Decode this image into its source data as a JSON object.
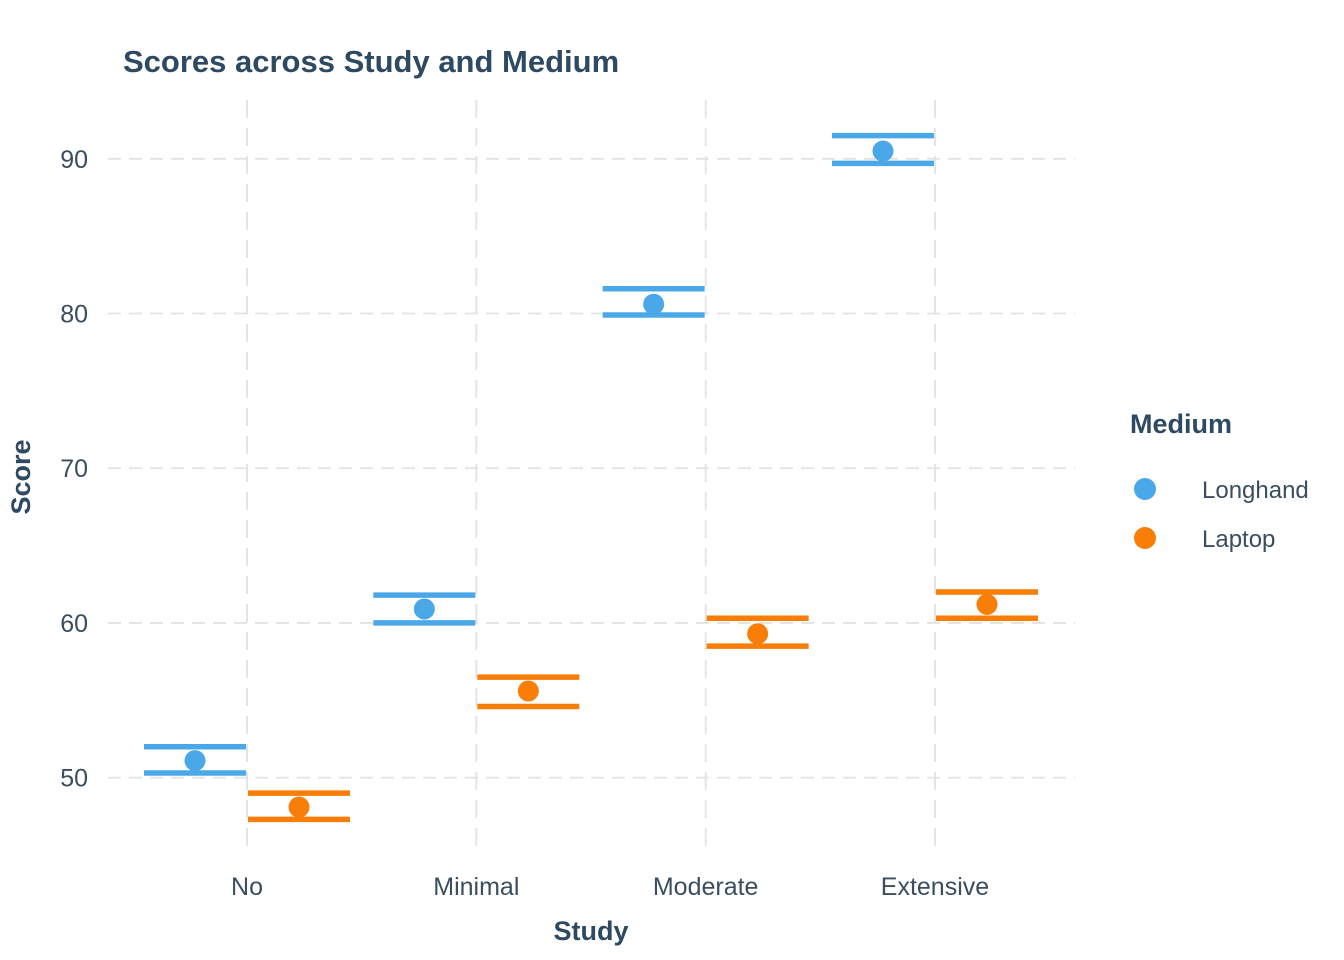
{
  "title": "Scores across Study and Medium",
  "x_axis": {
    "label": "Study",
    "categories": [
      "No",
      "Minimal",
      "Moderate",
      "Extensive"
    ]
  },
  "y_axis": {
    "label": "Score",
    "ticks": [
      50,
      60,
      70,
      80,
      90
    ]
  },
  "legend": {
    "title": "Medium",
    "position": "right",
    "items": [
      {
        "label": "Longhand",
        "color": "#4BA8E8"
      },
      {
        "label": "Laptop",
        "color": "#F97E07"
      }
    ]
  },
  "colors": {
    "longhand": "#4BA8E8",
    "laptop": "#F97E07",
    "title_text": "#2E4A62",
    "tick_text": "#3A4E60",
    "gridline": "#E2E2E2",
    "background": "#FFFFFF"
  },
  "chart_data": {
    "type": "scatter",
    "title": "Scores across Study and Medium",
    "xlabel": "Study",
    "ylabel": "Score",
    "categories": [
      "No",
      "Minimal",
      "Moderate",
      "Extensive"
    ],
    "series": [
      {
        "name": "Longhand",
        "color": "#4BA8E8",
        "values": [
          51.1,
          60.9,
          80.6,
          90.5
        ],
        "lower": [
          50.3,
          60.0,
          79.9,
          89.7
        ],
        "upper": [
          52.0,
          61.8,
          81.6,
          91.5
        ]
      },
      {
        "name": "Laptop",
        "color": "#F97E07",
        "values": [
          48.1,
          55.6,
          59.3,
          61.2
        ],
        "lower": [
          47.3,
          54.6,
          58.5,
          60.3
        ],
        "upper": [
          49.0,
          56.5,
          60.3,
          62.0
        ]
      }
    ],
    "yticks": [
      50,
      60,
      70,
      80,
      90
    ],
    "ylim": [
      45.0,
      93.8
    ],
    "grid": "dashed",
    "legend_position": "right",
    "marker": "point-with-error-bars"
  }
}
